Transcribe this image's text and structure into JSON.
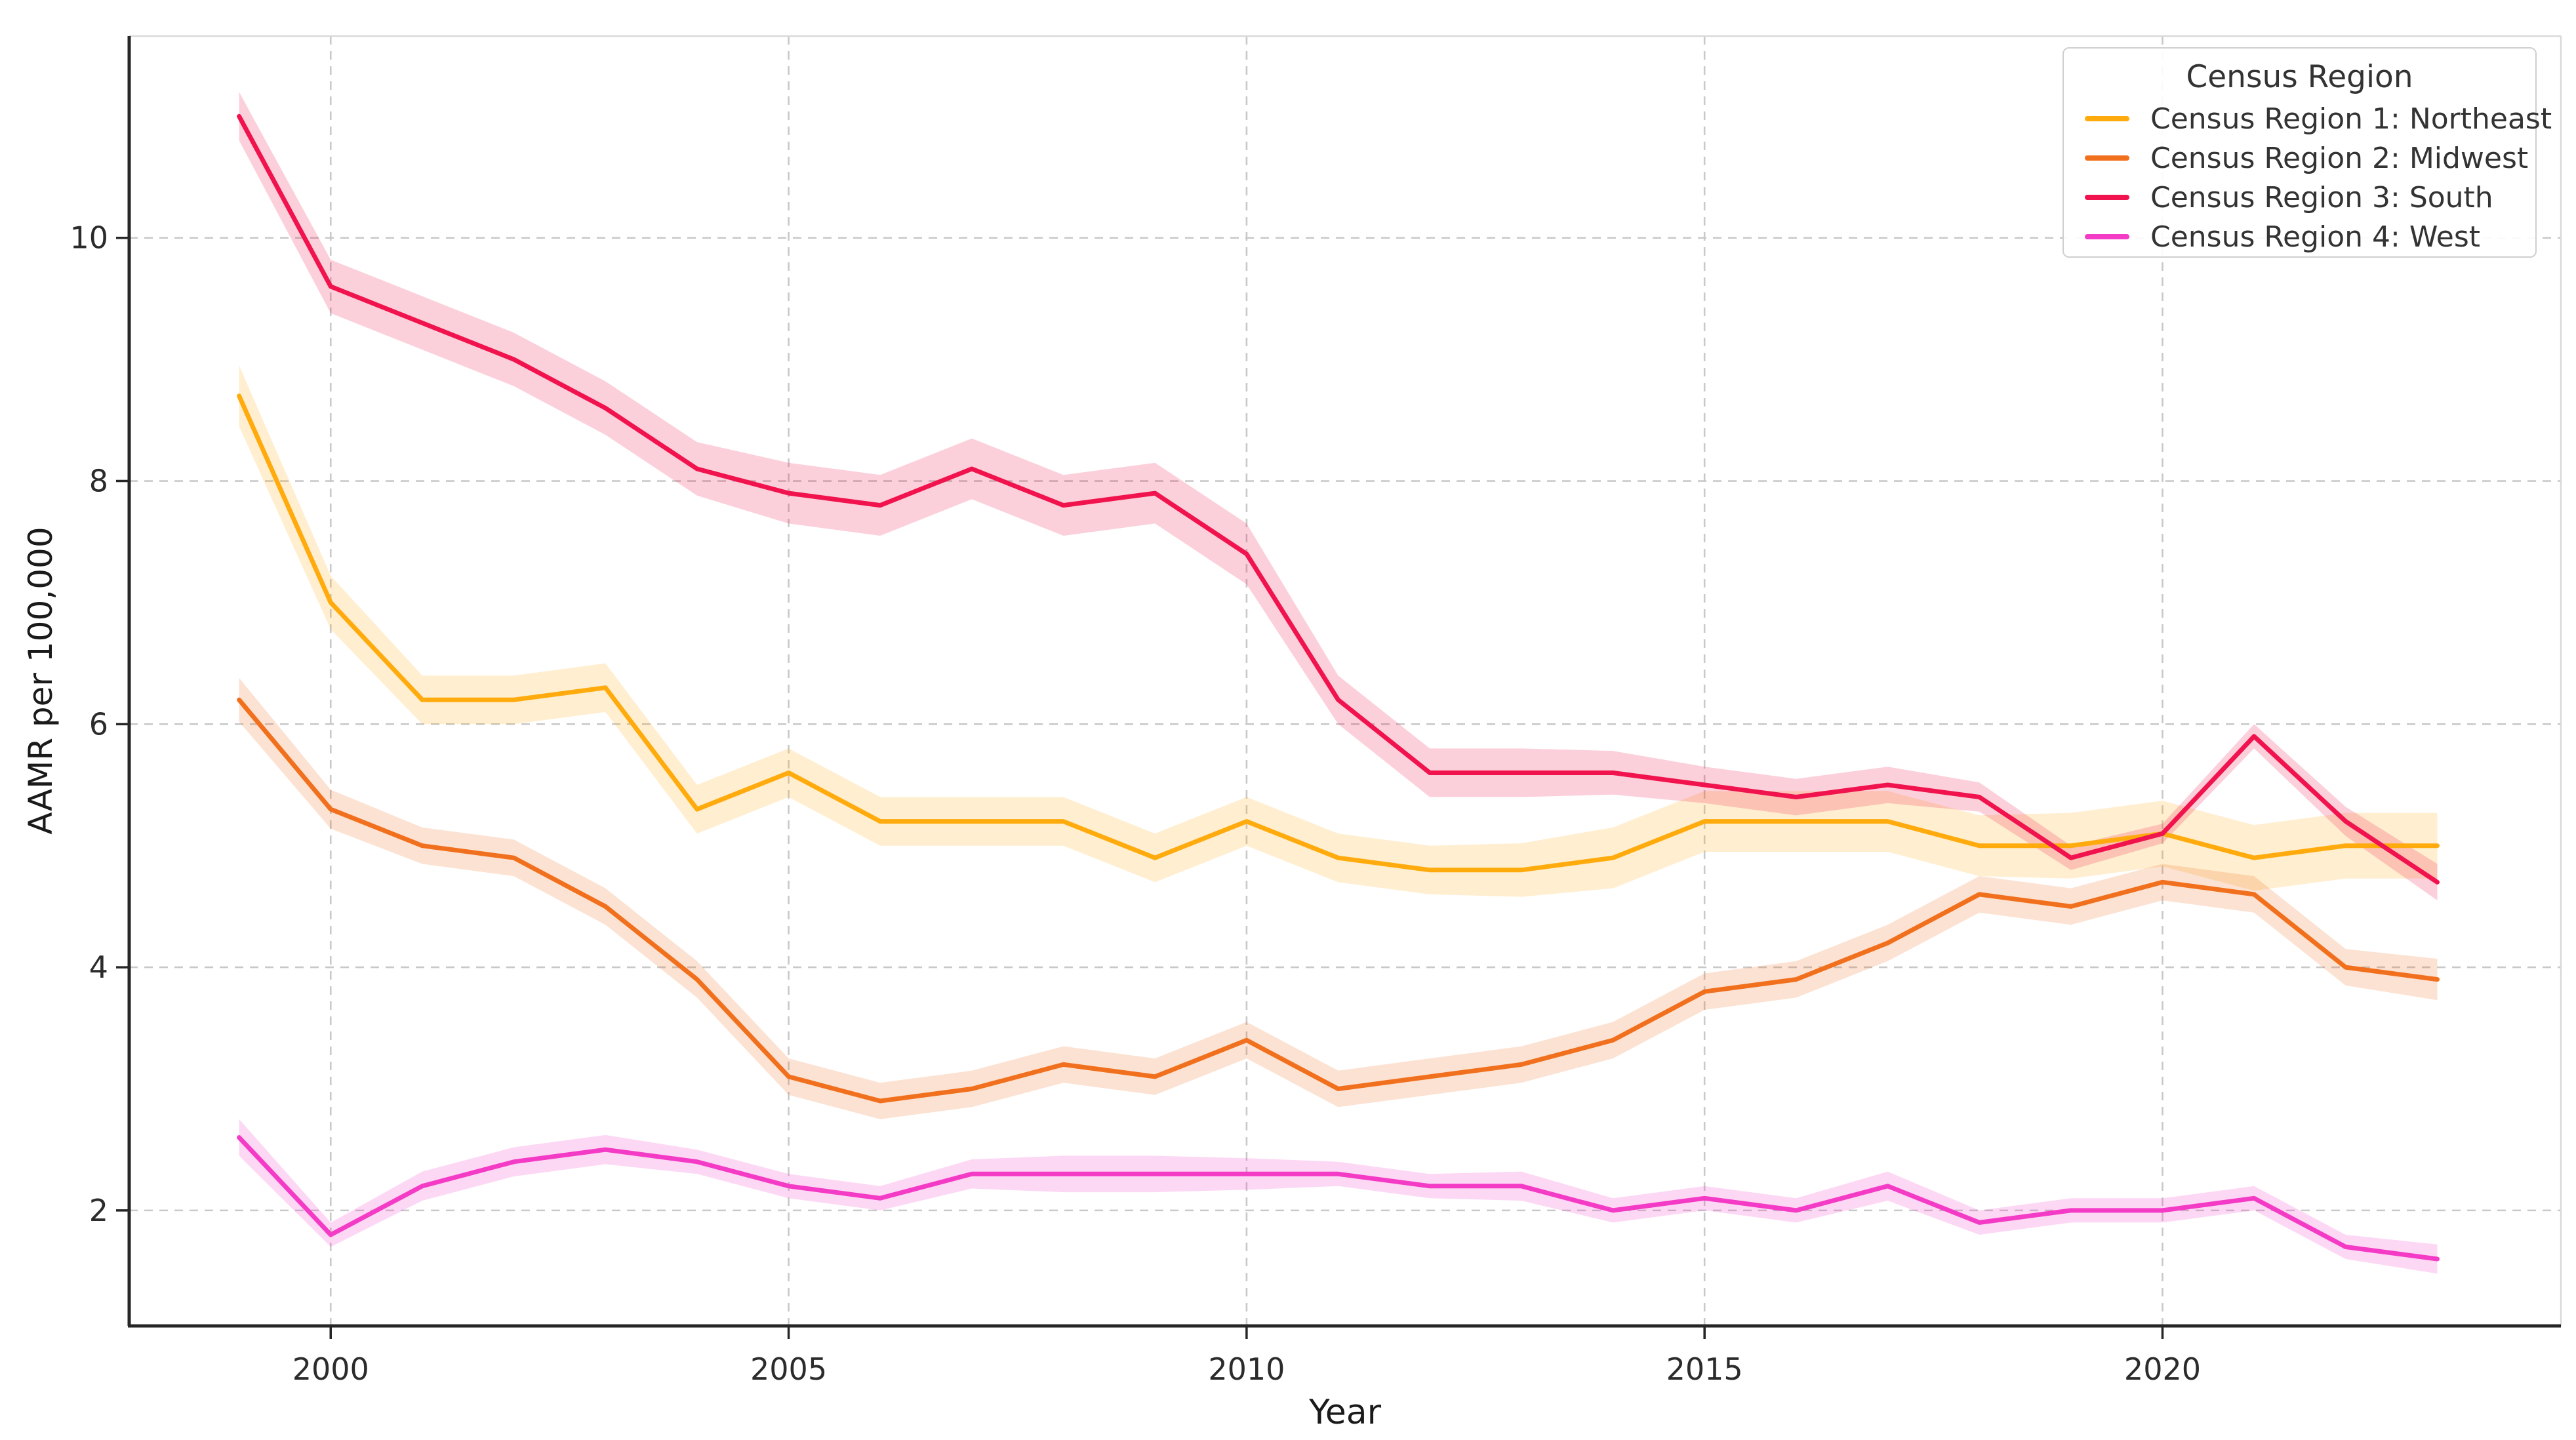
{
  "figure": {
    "xlabel": "Year",
    "ylabel": "AAMR per 100,000",
    "legend_title": "Census Region"
  },
  "chart_data": {
    "type": "line",
    "title": "",
    "xlabel": "Year",
    "ylabel": "AAMR per 100,000",
    "legend_title": "Census Region",
    "legend_position": "upper right",
    "grid": true,
    "x": [
      1999,
      2000,
      2001,
      2002,
      2003,
      2004,
      2005,
      2006,
      2007,
      2008,
      2009,
      2010,
      2011,
      2012,
      2013,
      2014,
      2015,
      2016,
      2017,
      2018,
      2019,
      2020,
      2021,
      2022,
      2023
    ],
    "xticks": [
      2000,
      2005,
      2010,
      2015,
      2020
    ],
    "yticks": [
      2,
      4,
      6,
      8,
      10
    ],
    "xlim": [
      1997.8,
      2024.35
    ],
    "ylim": [
      1.05,
      11.66
    ],
    "series": [
      {
        "name": "Census Region 1: Northeast",
        "color": "#FFAB0E",
        "values": [
          8.7,
          7.0,
          6.2,
          6.2,
          6.3,
          5.3,
          5.6,
          5.2,
          5.2,
          5.2,
          4.9,
          5.2,
          4.9,
          4.8,
          4.8,
          4.9,
          5.2,
          5.2,
          5.2,
          5.0,
          5.0,
          5.1,
          4.9,
          5.0,
          5.0
        ],
        "band": [
          0.25,
          0.22,
          0.2,
          0.2,
          0.2,
          0.2,
          0.2,
          0.2,
          0.2,
          0.2,
          0.2,
          0.2,
          0.2,
          0.2,
          0.22,
          0.25,
          0.25,
          0.25,
          0.25,
          0.25,
          0.27,
          0.27,
          0.27,
          0.27,
          0.27
        ]
      },
      {
        "name": "Census Region 2: Midwest",
        "color": "#F1701E",
        "values": [
          6.2,
          5.3,
          5.0,
          4.9,
          4.5,
          3.9,
          3.1,
          2.9,
          3.0,
          3.2,
          3.1,
          3.4,
          3.0,
          3.1,
          3.2,
          3.4,
          3.8,
          3.9,
          4.2,
          4.6,
          4.5,
          4.7,
          4.6,
          4.0,
          3.9
        ],
        "band": [
          0.18,
          0.16,
          0.15,
          0.15,
          0.15,
          0.15,
          0.15,
          0.15,
          0.15,
          0.15,
          0.15,
          0.15,
          0.15,
          0.15,
          0.15,
          0.15,
          0.15,
          0.15,
          0.15,
          0.15,
          0.15,
          0.15,
          0.15,
          0.15,
          0.17
        ]
      },
      {
        "name": "Census Region 3: South",
        "color": "#F0134D",
        "values": [
          11.0,
          9.6,
          9.3,
          9.0,
          8.6,
          8.1,
          7.9,
          7.8,
          8.1,
          7.8,
          7.9,
          7.4,
          6.2,
          5.6,
          5.6,
          5.6,
          5.5,
          5.4,
          5.5,
          5.4,
          4.9,
          5.1,
          5.9,
          5.2,
          4.7
        ],
        "band": [
          0.2,
          0.22,
          0.22,
          0.22,
          0.22,
          0.22,
          0.25,
          0.25,
          0.25,
          0.25,
          0.25,
          0.25,
          0.2,
          0.2,
          0.2,
          0.18,
          0.15,
          0.15,
          0.15,
          0.12,
          0.1,
          0.08,
          0.1,
          0.12,
          0.15
        ]
      },
      {
        "name": "Census Region 4: West",
        "color": "#F43BC6",
        "values": [
          2.6,
          1.8,
          2.2,
          2.4,
          2.5,
          2.4,
          2.2,
          2.1,
          2.3,
          2.3,
          2.3,
          2.3,
          2.3,
          2.2,
          2.2,
          2.0,
          2.1,
          2.0,
          2.2,
          1.9,
          2.0,
          2.0,
          2.1,
          1.7,
          1.6
        ],
        "band": [
          0.15,
          0.1,
          0.12,
          0.12,
          0.12,
          0.1,
          0.1,
          0.1,
          0.12,
          0.15,
          0.15,
          0.13,
          0.1,
          0.1,
          0.12,
          0.1,
          0.1,
          0.1,
          0.12,
          0.1,
          0.1,
          0.1,
          0.1,
          0.1,
          0.12
        ]
      }
    ]
  }
}
